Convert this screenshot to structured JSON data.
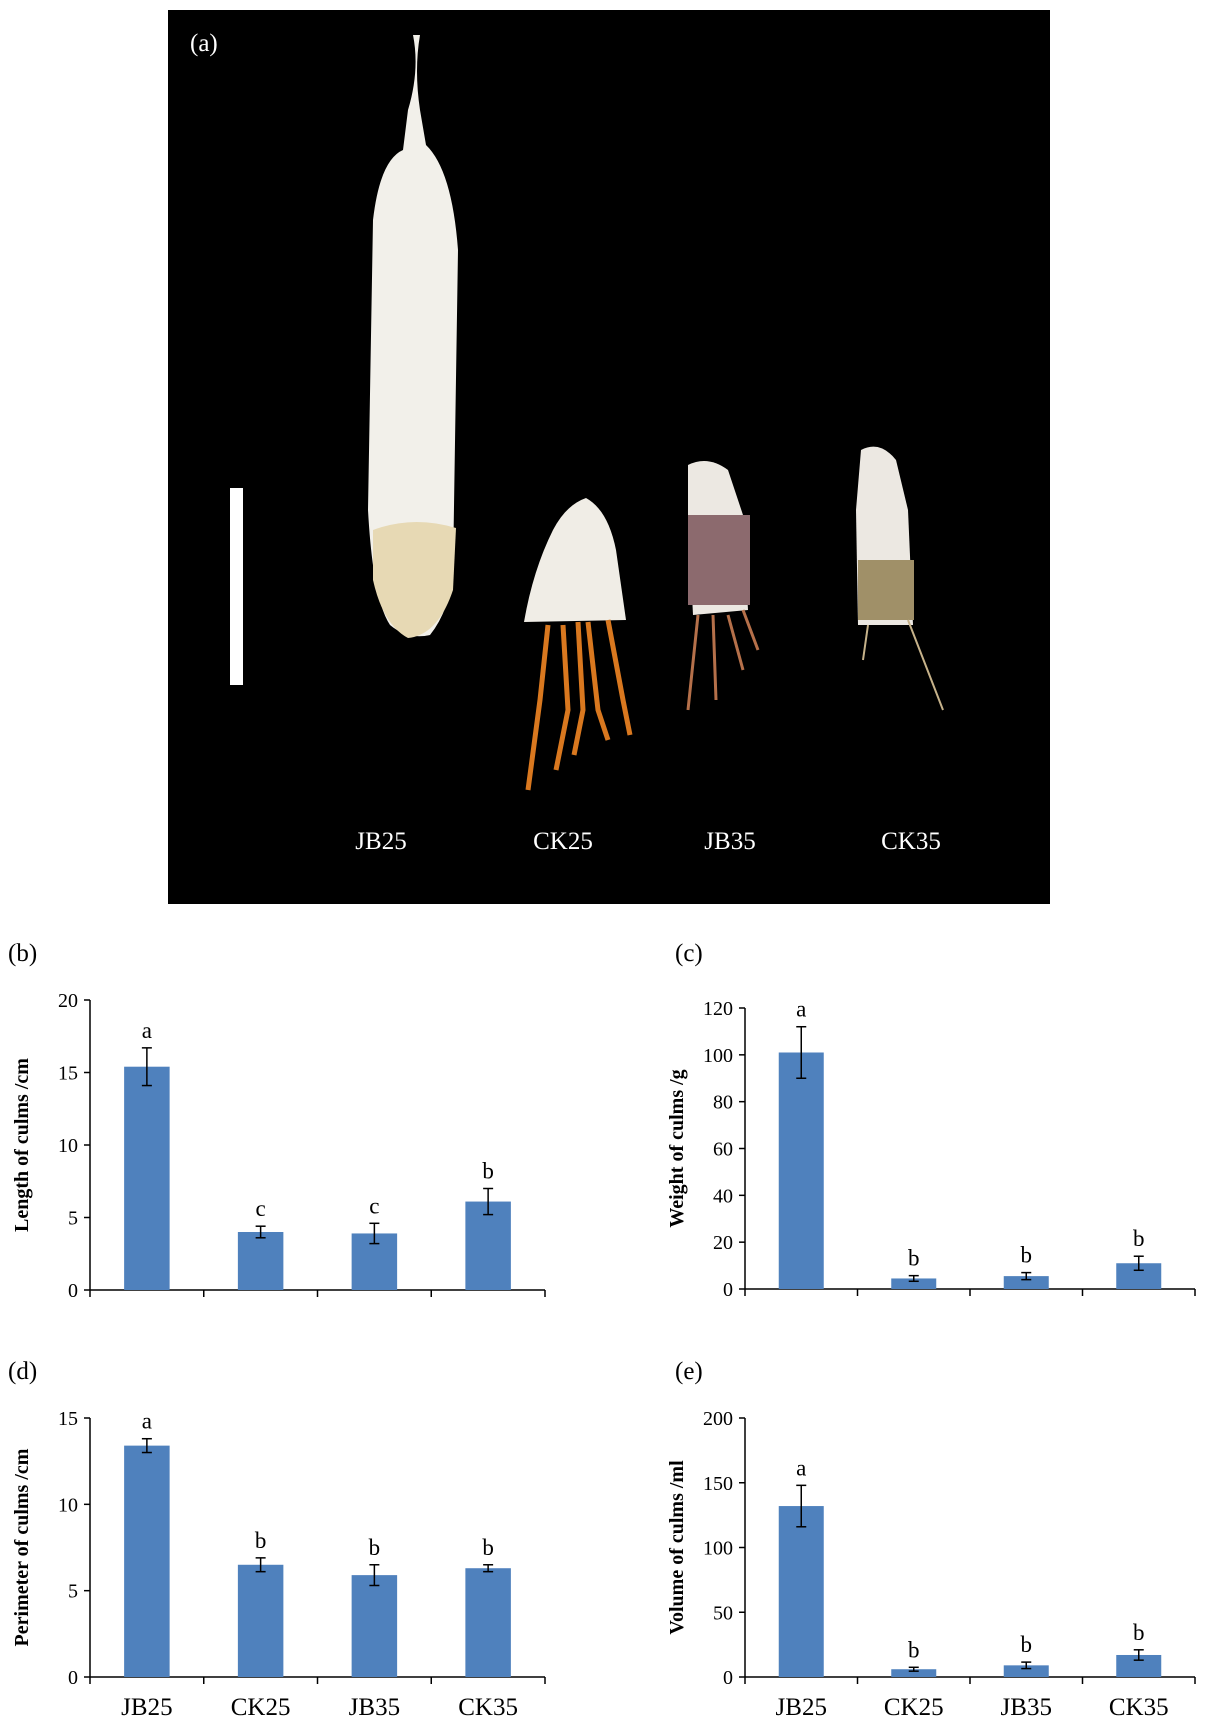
{
  "photo": {
    "panel_label": "(a)",
    "specimen_labels": [
      "JB25",
      "CK25",
      "JB35",
      "CK35"
    ]
  },
  "bar_color": "#4F81BD",
  "chart_data": [
    {
      "type": "bar",
      "panel_label": "(b)",
      "categories": [
        "JB25",
        "CK25",
        "JB35",
        "CK35"
      ],
      "values": [
        15.4,
        4.0,
        3.9,
        6.1
      ],
      "errors": [
        1.3,
        0.4,
        0.7,
        0.9
      ],
      "significance": [
        "a",
        "c",
        "c",
        "b"
      ],
      "ylabel": "Length of culms /cm",
      "ylim": [
        0,
        20
      ],
      "yticks": [
        0,
        5,
        10,
        15,
        20
      ],
      "show_xtick_labels": false
    },
    {
      "type": "bar",
      "panel_label": "(c)",
      "categories": [
        "JB25",
        "CK25",
        "JB35",
        "CK35"
      ],
      "values": [
        101,
        4.5,
        5.5,
        11
      ],
      "errors": [
        11,
        1.2,
        1.5,
        3
      ],
      "significance": [
        "a",
        "b",
        "b",
        "b"
      ],
      "ylabel": "Weight of culms /g",
      "ylim": [
        0,
        120
      ],
      "yticks": [
        0,
        20,
        40,
        60,
        80,
        100,
        120
      ],
      "show_xtick_labels": false
    },
    {
      "type": "bar",
      "panel_label": "(d)",
      "categories": [
        "JB25",
        "CK25",
        "JB35",
        "CK35"
      ],
      "values": [
        13.4,
        6.5,
        5.9,
        6.3
      ],
      "errors": [
        0.4,
        0.4,
        0.6,
        0.2
      ],
      "significance": [
        "a",
        "b",
        "b",
        "b"
      ],
      "ylabel": "Perimeter of culms /cm",
      "ylim": [
        0,
        15
      ],
      "yticks": [
        0,
        5,
        10,
        15
      ],
      "show_xtick_labels": true
    },
    {
      "type": "bar",
      "panel_label": "(e)",
      "categories": [
        "JB25",
        "CK25",
        "JB35",
        "CK35"
      ],
      "values": [
        132,
        6,
        9,
        17
      ],
      "errors": [
        16,
        1.5,
        2.5,
        4
      ],
      "significance": [
        "a",
        "b",
        "b",
        "b"
      ],
      "ylabel": "Volume of culms /ml",
      "ylim": [
        0,
        200
      ],
      "yticks": [
        0,
        50,
        100,
        150,
        200
      ],
      "show_xtick_labels": true
    }
  ]
}
